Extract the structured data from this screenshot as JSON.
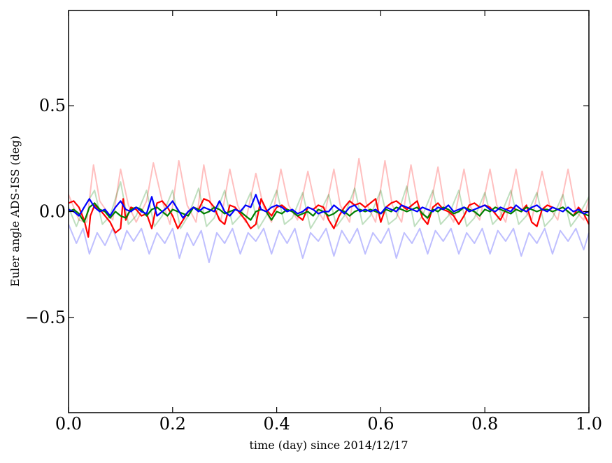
{
  "chart_data": {
    "type": "line",
    "xlabel": "time (day) since 2014/12/17",
    "ylabel": "Euler angle ADS-ISS (deg)",
    "xlim": [
      0.0,
      1.0
    ],
    "ylim": [
      -0.95,
      0.95
    ],
    "x_ticks": [
      0.0,
      0.2,
      0.4,
      0.6,
      0.8,
      1.0
    ],
    "x_tick_labels": [
      "0.0",
      "0.2",
      "0.4",
      "0.6",
      "0.8",
      "1.0"
    ],
    "y_ticks": [
      0.5,
      0.0,
      -0.5
    ],
    "y_tick_labels": [
      "0.5",
      "0.0",
      "−0.5"
    ],
    "grid": false,
    "legend": "none",
    "series": [
      {
        "color": "#ff0000",
        "alpha": 0.25,
        "width": 2,
        "x": [
          0.0,
          0.02,
          0.035,
          0.048,
          0.06,
          0.085,
          0.1,
          0.115,
          0.13,
          0.15,
          0.163,
          0.18,
          0.195,
          0.212,
          0.228,
          0.245,
          0.26,
          0.275,
          0.293,
          0.31,
          0.325,
          0.34,
          0.36,
          0.375,
          0.39,
          0.408,
          0.423,
          0.44,
          0.46,
          0.475,
          0.49,
          0.51,
          0.522,
          0.54,
          0.558,
          0.572,
          0.59,
          0.608,
          0.622,
          0.64,
          0.658,
          0.672,
          0.69,
          0.71,
          0.722,
          0.74,
          0.76,
          0.773,
          0.79,
          0.81,
          0.823,
          0.84,
          0.86,
          0.873,
          0.89,
          0.91,
          0.925,
          0.94,
          0.96,
          0.975,
          0.99,
          1.0
        ],
        "y": [
          0.08,
          -0.04,
          -0.05,
          0.22,
          0.05,
          -0.04,
          0.2,
          0.03,
          -0.05,
          0.05,
          0.23,
          0.05,
          -0.06,
          0.24,
          0.03,
          -0.05,
          0.22,
          0.02,
          -0.04,
          0.2,
          0.03,
          -0.05,
          0.18,
          0.02,
          -0.05,
          0.2,
          0.03,
          -0.04,
          0.19,
          0.02,
          -0.04,
          0.2,
          0.03,
          -0.05,
          0.25,
          0.04,
          -0.05,
          0.24,
          0.03,
          -0.05,
          0.22,
          0.03,
          -0.04,
          0.21,
          0.03,
          -0.05,
          0.2,
          0.02,
          -0.04,
          0.2,
          0.03,
          -0.05,
          0.2,
          0.02,
          -0.04,
          0.19,
          0.02,
          -0.04,
          0.2,
          0.0,
          -0.04,
          0.06
        ]
      },
      {
        "color": "#008000",
        "alpha": 0.25,
        "width": 2,
        "x": [
          0.0,
          0.015,
          0.03,
          0.05,
          0.065,
          0.08,
          0.1,
          0.115,
          0.13,
          0.15,
          0.165,
          0.18,
          0.2,
          0.215,
          0.23,
          0.25,
          0.265,
          0.28,
          0.3,
          0.315,
          0.33,
          0.35,
          0.365,
          0.38,
          0.4,
          0.415,
          0.43,
          0.45,
          0.465,
          0.48,
          0.5,
          0.515,
          0.53,
          0.55,
          0.565,
          0.58,
          0.6,
          0.615,
          0.63,
          0.65,
          0.665,
          0.68,
          0.7,
          0.715,
          0.73,
          0.75,
          0.765,
          0.78,
          0.8,
          0.815,
          0.83,
          0.85,
          0.865,
          0.88,
          0.9,
          0.915,
          0.93,
          0.95,
          0.965,
          0.98,
          1.0
        ],
        "y": [
          0.02,
          -0.07,
          0.02,
          0.1,
          -0.06,
          -0.02,
          0.14,
          -0.06,
          -0.02,
          0.1,
          -0.07,
          -0.02,
          0.1,
          -0.08,
          -0.02,
          0.11,
          -0.07,
          -0.03,
          0.1,
          -0.06,
          -0.02,
          0.09,
          -0.08,
          -0.02,
          0.1,
          -0.06,
          -0.03,
          0.09,
          -0.08,
          -0.02,
          0.08,
          -0.07,
          -0.02,
          0.11,
          -0.06,
          -0.02,
          0.1,
          -0.06,
          -0.03,
          0.12,
          -0.07,
          -0.02,
          0.1,
          -0.06,
          -0.02,
          0.1,
          -0.07,
          -0.03,
          0.09,
          -0.06,
          -0.02,
          0.1,
          -0.06,
          -0.02,
          0.09,
          -0.07,
          -0.03,
          0.08,
          -0.07,
          -0.02,
          0.07
        ]
      },
      {
        "color": "#0000ff",
        "alpha": 0.25,
        "width": 2,
        "x": [
          0.0,
          0.015,
          0.028,
          0.04,
          0.055,
          0.07,
          0.085,
          0.1,
          0.112,
          0.125,
          0.14,
          0.155,
          0.17,
          0.185,
          0.2,
          0.213,
          0.228,
          0.24,
          0.255,
          0.27,
          0.285,
          0.3,
          0.315,
          0.33,
          0.345,
          0.36,
          0.375,
          0.39,
          0.405,
          0.42,
          0.435,
          0.45,
          0.465,
          0.48,
          0.495,
          0.51,
          0.525,
          0.54,
          0.555,
          0.57,
          0.585,
          0.6,
          0.615,
          0.63,
          0.645,
          0.66,
          0.675,
          0.69,
          0.705,
          0.72,
          0.735,
          0.75,
          0.765,
          0.78,
          0.795,
          0.81,
          0.825,
          0.84,
          0.855,
          0.87,
          0.885,
          0.9,
          0.915,
          0.93,
          0.945,
          0.96,
          0.975,
          0.99,
          1.0
        ],
        "y": [
          -0.06,
          -0.15,
          -0.08,
          -0.2,
          -0.1,
          -0.16,
          -0.08,
          -0.18,
          -0.09,
          -0.14,
          -0.08,
          -0.2,
          -0.1,
          -0.15,
          -0.08,
          -0.22,
          -0.1,
          -0.16,
          -0.09,
          -0.24,
          -0.1,
          -0.15,
          -0.08,
          -0.2,
          -0.1,
          -0.14,
          -0.08,
          -0.2,
          -0.09,
          -0.15,
          -0.08,
          -0.22,
          -0.1,
          -0.14,
          -0.08,
          -0.21,
          -0.09,
          -0.15,
          -0.08,
          -0.2,
          -0.1,
          -0.15,
          -0.08,
          -0.22,
          -0.1,
          -0.15,
          -0.08,
          -0.2,
          -0.09,
          -0.14,
          -0.08,
          -0.2,
          -0.1,
          -0.15,
          -0.08,
          -0.2,
          -0.09,
          -0.14,
          -0.08,
          -0.21,
          -0.1,
          -0.15,
          -0.08,
          -0.2,
          -0.09,
          -0.14,
          -0.08,
          -0.18,
          -0.1
        ]
      },
      {
        "color": "#ff0000",
        "alpha": 1.0,
        "width": 2.2,
        "x": [
          0.0,
          0.01,
          0.02,
          0.03,
          0.038,
          0.042,
          0.05,
          0.06,
          0.07,
          0.08,
          0.09,
          0.1,
          0.105,
          0.11,
          0.12,
          0.13,
          0.14,
          0.15,
          0.16,
          0.17,
          0.18,
          0.19,
          0.2,
          0.21,
          0.22,
          0.23,
          0.24,
          0.25,
          0.26,
          0.27,
          0.28,
          0.29,
          0.3,
          0.31,
          0.32,
          0.33,
          0.34,
          0.35,
          0.36,
          0.37,
          0.38,
          0.39,
          0.4,
          0.41,
          0.42,
          0.43,
          0.44,
          0.45,
          0.46,
          0.47,
          0.48,
          0.49,
          0.5,
          0.51,
          0.52,
          0.53,
          0.54,
          0.55,
          0.56,
          0.57,
          0.58,
          0.59,
          0.6,
          0.61,
          0.62,
          0.63,
          0.64,
          0.65,
          0.66,
          0.67,
          0.68,
          0.69,
          0.7,
          0.71,
          0.72,
          0.73,
          0.74,
          0.75,
          0.76,
          0.77,
          0.78,
          0.79,
          0.8,
          0.81,
          0.82,
          0.83,
          0.84,
          0.85,
          0.86,
          0.87,
          0.88,
          0.89,
          0.9,
          0.91,
          0.92,
          0.93,
          0.94,
          0.95,
          0.96,
          0.97,
          0.98,
          0.99,
          1.0
        ],
        "y": [
          0.04,
          0.05,
          0.02,
          -0.04,
          -0.12,
          -0.02,
          0.03,
          0.01,
          -0.02,
          -0.05,
          -0.1,
          -0.08,
          0.06,
          -0.04,
          0.02,
          0.01,
          -0.02,
          -0.01,
          -0.08,
          0.04,
          0.05,
          0.02,
          -0.02,
          -0.08,
          -0.04,
          0.0,
          0.02,
          0.01,
          0.06,
          0.05,
          0.02,
          -0.04,
          -0.06,
          0.03,
          0.02,
          -0.01,
          -0.04,
          -0.08,
          -0.06,
          0.06,
          0.01,
          -0.02,
          0.02,
          0.03,
          0.01,
          0.0,
          -0.02,
          -0.04,
          0.02,
          0.01,
          0.03,
          0.02,
          -0.04,
          -0.08,
          -0.02,
          0.02,
          0.05,
          0.03,
          0.04,
          0.02,
          0.04,
          0.06,
          -0.05,
          0.02,
          0.04,
          0.05,
          0.03,
          0.01,
          0.03,
          0.05,
          -0.03,
          -0.06,
          0.02,
          0.04,
          0.01,
          0.0,
          -0.02,
          -0.06,
          -0.02,
          0.03,
          0.04,
          0.02,
          0.03,
          0.02,
          -0.01,
          -0.04,
          0.01,
          0.02,
          0.01,
          0.0,
          0.03,
          -0.05,
          -0.07,
          0.01,
          0.03,
          0.02,
          0.01,
          0.02,
          0.0,
          -0.02,
          0.02,
          -0.01,
          -0.06
        ]
      },
      {
        "color": "#008000",
        "alpha": 1.0,
        "width": 2.2,
        "x": [
          0.0,
          0.01,
          0.02,
          0.03,
          0.04,
          0.05,
          0.06,
          0.07,
          0.08,
          0.09,
          0.1,
          0.11,
          0.12,
          0.13,
          0.14,
          0.15,
          0.16,
          0.17,
          0.18,
          0.19,
          0.2,
          0.21,
          0.22,
          0.23,
          0.24,
          0.25,
          0.26,
          0.27,
          0.28,
          0.29,
          0.3,
          0.31,
          0.32,
          0.33,
          0.34,
          0.35,
          0.36,
          0.37,
          0.38,
          0.39,
          0.4,
          0.41,
          0.42,
          0.43,
          0.44,
          0.45,
          0.46,
          0.47,
          0.48,
          0.49,
          0.5,
          0.51,
          0.52,
          0.53,
          0.54,
          0.55,
          0.56,
          0.57,
          0.58,
          0.59,
          0.6,
          0.61,
          0.62,
          0.63,
          0.64,
          0.65,
          0.66,
          0.67,
          0.68,
          0.69,
          0.7,
          0.71,
          0.72,
          0.73,
          0.74,
          0.75,
          0.76,
          0.77,
          0.78,
          0.79,
          0.8,
          0.81,
          0.82,
          0.83,
          0.84,
          0.85,
          0.86,
          0.87,
          0.88,
          0.89,
          0.9,
          0.91,
          0.92,
          0.93,
          0.94,
          0.95,
          0.96,
          0.97,
          0.98,
          0.99,
          1.0
        ],
        "y": [
          0.0,
          0.01,
          -0.01,
          -0.05,
          0.02,
          0.04,
          0.01,
          0.0,
          -0.03,
          0.0,
          -0.02,
          -0.03,
          0.01,
          0.02,
          0.01,
          -0.02,
          0.01,
          0.02,
          0.0,
          -0.02,
          0.01,
          0.0,
          -0.01,
          -0.02,
          0.02,
          0.01,
          -0.01,
          0.0,
          0.02,
          0.01,
          -0.01,
          0.0,
          0.01,
          0.0,
          -0.02,
          -0.04,
          0.0,
          0.01,
          0.0,
          -0.04,
          0.0,
          -0.01,
          0.01,
          0.0,
          -0.02,
          -0.01,
          0.0,
          -0.02,
          0.01,
          0.0,
          -0.02,
          -0.01,
          0.01,
          0.0,
          -0.02,
          0.0,
          0.01,
          0.0,
          0.01,
          0.0,
          -0.01,
          0.01,
          0.0,
          0.02,
          0.01,
          0.0,
          0.01,
          0.02,
          -0.01,
          -0.03,
          0.01,
          0.0,
          0.02,
          0.01,
          -0.01,
          0.0,
          0.02,
          0.01,
          0.0,
          -0.02,
          0.01,
          0.0,
          0.02,
          0.01,
          0.0,
          -0.01,
          0.01,
          0.0,
          0.02,
          0.01,
          0.0,
          0.01,
          0.01,
          0.0,
          0.01,
          0.02,
          0.0,
          -0.02,
          0.0,
          -0.01,
          -0.02
        ]
      },
      {
        "color": "#0000ff",
        "alpha": 1.0,
        "width": 2.2,
        "x": [
          0.0,
          0.01,
          0.02,
          0.03,
          0.04,
          0.05,
          0.06,
          0.07,
          0.08,
          0.09,
          0.1,
          0.11,
          0.12,
          0.13,
          0.14,
          0.15,
          0.16,
          0.17,
          0.18,
          0.19,
          0.2,
          0.21,
          0.22,
          0.23,
          0.24,
          0.25,
          0.26,
          0.27,
          0.28,
          0.29,
          0.3,
          0.31,
          0.32,
          0.33,
          0.34,
          0.35,
          0.36,
          0.37,
          0.38,
          0.39,
          0.4,
          0.41,
          0.42,
          0.43,
          0.44,
          0.45,
          0.46,
          0.47,
          0.48,
          0.49,
          0.5,
          0.51,
          0.52,
          0.53,
          0.54,
          0.55,
          0.56,
          0.57,
          0.58,
          0.59,
          0.6,
          0.61,
          0.62,
          0.63,
          0.64,
          0.65,
          0.66,
          0.67,
          0.68,
          0.69,
          0.7,
          0.71,
          0.72,
          0.73,
          0.74,
          0.75,
          0.76,
          0.77,
          0.78,
          0.79,
          0.8,
          0.81,
          0.82,
          0.83,
          0.84,
          0.85,
          0.86,
          0.87,
          0.88,
          0.89,
          0.9,
          0.91,
          0.92,
          0.93,
          0.94,
          0.95,
          0.96,
          0.97,
          0.98,
          0.99,
          1.0
        ],
        "y": [
          0.01,
          0.0,
          -0.02,
          0.02,
          0.06,
          0.02,
          0.0,
          0.01,
          -0.02,
          0.02,
          0.05,
          0.01,
          0.0,
          0.02,
          0.0,
          -0.01,
          0.07,
          -0.02,
          0.0,
          0.02,
          0.05,
          0.01,
          -0.03,
          0.0,
          0.02,
          0.0,
          0.02,
          0.01,
          0.0,
          0.05,
          0.0,
          -0.02,
          0.01,
          0.0,
          0.03,
          0.02,
          0.08,
          0.01,
          0.0,
          0.02,
          0.03,
          0.02,
          0.0,
          0.01,
          -0.01,
          0.0,
          0.02,
          0.01,
          -0.01,
          0.0,
          0.0,
          0.03,
          0.01,
          -0.01,
          0.02,
          0.03,
          0.0,
          0.01,
          0.0,
          0.01,
          -0.01,
          0.02,
          0.01,
          0.0,
          0.03,
          0.02,
          0.01,
          0.0,
          0.02,
          0.01,
          0.0,
          0.02,
          0.01,
          0.03,
          0.0,
          0.01,
          0.02,
          0.0,
          0.01,
          0.02,
          0.03,
          0.01,
          0.0,
          0.02,
          0.01,
          0.0,
          0.03,
          0.01,
          0.0,
          0.02,
          0.03,
          0.01,
          0.0,
          0.02,
          0.01,
          0.0,
          0.02,
          0.0,
          0.01,
          -0.01,
          0.0
        ]
      }
    ]
  }
}
